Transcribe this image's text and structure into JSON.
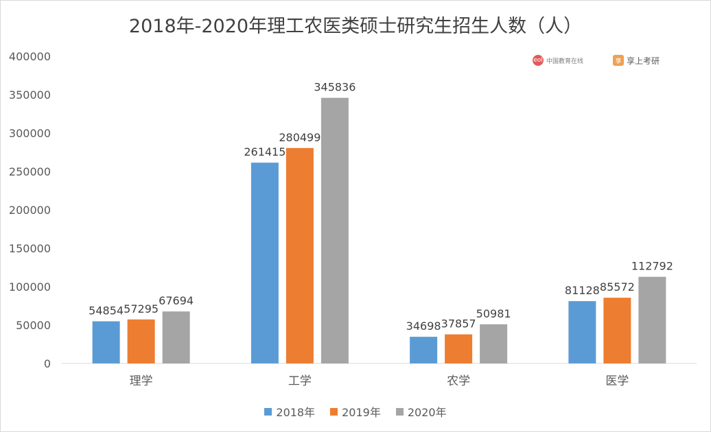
{
  "chart_data": {
    "type": "bar",
    "title": "2018年-2020年理工农医类硕士研究生招生人数（人）",
    "categories": [
      "理学",
      "工学",
      "农学",
      "医学"
    ],
    "series": [
      {
        "name": "2018年",
        "color": "#5b9bd5",
        "values": [
          54854,
          261415,
          34698,
          81128
        ]
      },
      {
        "name": "2019年",
        "color": "#ed7d31",
        "values": [
          57295,
          280499,
          37857,
          85572
        ]
      },
      {
        "name": "2020年",
        "color": "#a5a5a5",
        "values": [
          67694,
          345836,
          50981,
          112792
        ]
      }
    ],
    "ylim": [
      0,
      400000
    ],
    "yticks": [
      0,
      50000,
      100000,
      150000,
      200000,
      250000,
      300000,
      350000,
      400000
    ],
    "xlabel": "",
    "ylabel": "",
    "grid": false,
    "legend": "bottom"
  },
  "watermarks": {
    "logo_a_mark": "eol",
    "logo_a_text": "中国教育在线",
    "logo_b_mark": "享",
    "logo_b_text": "享上考研"
  }
}
